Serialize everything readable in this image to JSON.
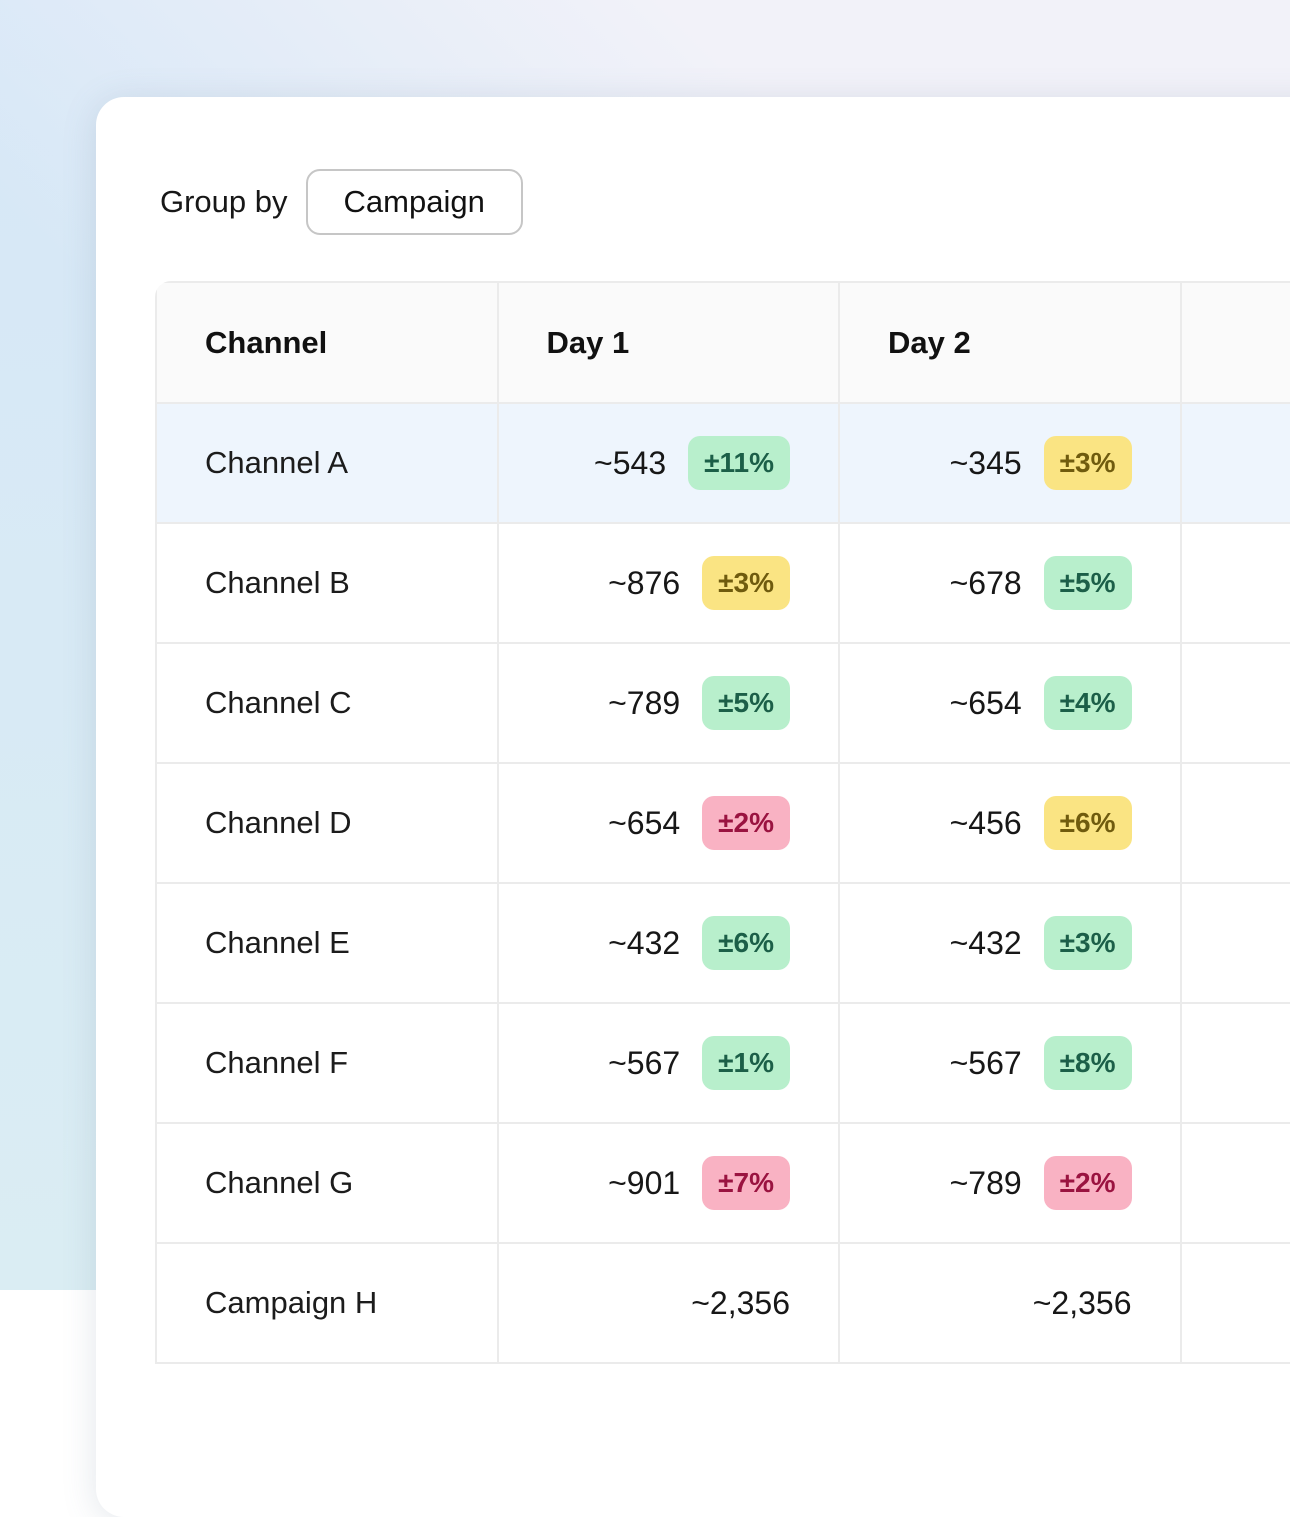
{
  "toolbar": {
    "group_by_label": "Group by",
    "group_by_value": "Campaign"
  },
  "table": {
    "headers": [
      "Channel",
      "Day 1",
      "Day 2",
      ""
    ],
    "rows": [
      {
        "channel": "Channel A",
        "state": "highlight",
        "day1": {
          "value": "~543",
          "badge": "±11%",
          "tone": "green"
        },
        "day2": {
          "value": "~345",
          "badge": "±3%",
          "tone": "yellow"
        }
      },
      {
        "channel": "Channel B",
        "state": "",
        "day1": {
          "value": "~876",
          "badge": "±3%",
          "tone": "yellow"
        },
        "day2": {
          "value": "~678",
          "badge": "±5%",
          "tone": "green"
        }
      },
      {
        "channel": "Channel C",
        "state": "",
        "day1": {
          "value": "~789",
          "badge": "±5%",
          "tone": "green"
        },
        "day2": {
          "value": "~654",
          "badge": "±4%",
          "tone": "green"
        }
      },
      {
        "channel": "Channel D",
        "state": "",
        "day1": {
          "value": "~654",
          "badge": "±2%",
          "tone": "pink"
        },
        "day2": {
          "value": "~456",
          "badge": "±6%",
          "tone": "yellow"
        }
      },
      {
        "channel": "Channel E",
        "state": "",
        "day1": {
          "value": "~432",
          "badge": "±6%",
          "tone": "green"
        },
        "day2": {
          "value": "~432",
          "badge": "±3%",
          "tone": "green"
        }
      },
      {
        "channel": "Channel F",
        "state": "",
        "day1": {
          "value": "~567",
          "badge": "±1%",
          "tone": "green"
        },
        "day2": {
          "value": "~567",
          "badge": "±8%",
          "tone": "green"
        }
      },
      {
        "channel": "Channel G",
        "state": "",
        "day1": {
          "value": "~901",
          "badge": "±7%",
          "tone": "pink"
        },
        "day2": {
          "value": "~789",
          "badge": "±2%",
          "tone": "pink"
        }
      },
      {
        "channel": "Campaign H",
        "state": "",
        "day1": {
          "value": "~2,356",
          "badge": "",
          "tone": ""
        },
        "day2": {
          "value": "~2,356",
          "badge": "",
          "tone": ""
        }
      }
    ]
  },
  "colors": {
    "badge_green_bg": "#b8efcc",
    "badge_green_text": "#1c5f48",
    "badge_yellow_bg": "#fae483",
    "badge_yellow_text": "#6f5b0e",
    "badge_pink_bg": "#f9b2c3",
    "badge_pink_text": "#9a1340",
    "row_highlight": "#eef5fd",
    "header_bg": "#fafafa"
  }
}
